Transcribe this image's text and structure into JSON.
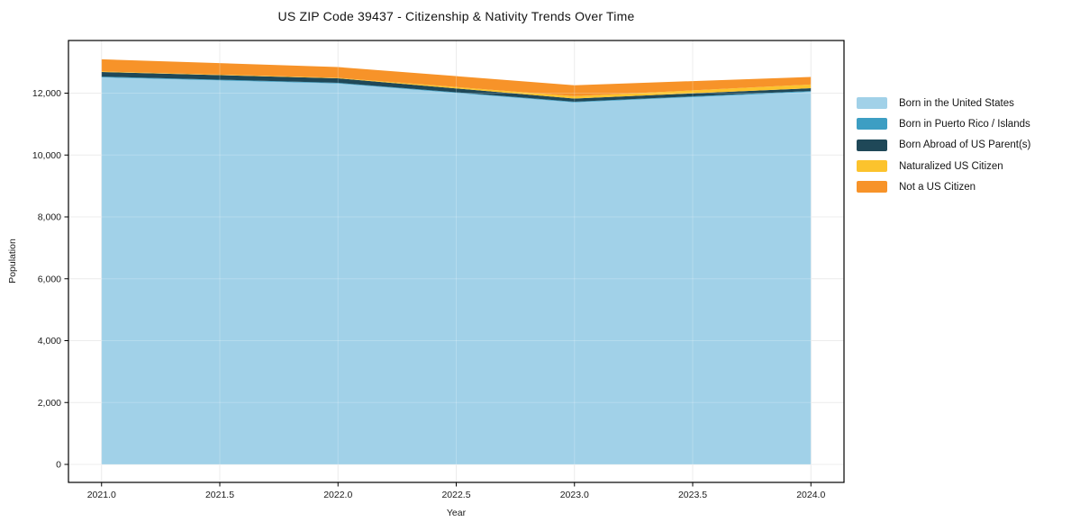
{
  "title": "US ZIP Code 39437 - Citizenship & Nativity Trends Over Time",
  "chart_data": {
    "type": "area",
    "stacked": true,
    "title": "US ZIP Code 39437 - Citizenship & Nativity Trends Over Time",
    "xlabel": "Year",
    "ylabel": "Population",
    "x": [
      2021,
      2022,
      2023,
      2024
    ],
    "series": [
      {
        "name": "Born in the United States",
        "color": "#a1d1e8",
        "values": [
          12510,
          12310,
          11700,
          12045
        ]
      },
      {
        "name": "Born in Puerto Rico / Islands",
        "color": "#3d9ec3",
        "values": [
          25,
          25,
          25,
          25
        ]
      },
      {
        "name": "Born Abroad of US Parent(s)",
        "color": "#1f4858",
        "values": [
          150,
          145,
          100,
          90
        ]
      },
      {
        "name": "Naturalized US Citizen",
        "color": "#fcc32d",
        "values": [
          20,
          15,
          75,
          120
        ]
      },
      {
        "name": "Not a US Citizen",
        "color": "#f79329",
        "values": [
          390,
          350,
          355,
          245
        ]
      }
    ],
    "x_ticks": [
      2021.0,
      2021.5,
      2022.0,
      2022.5,
      2023.0,
      2023.5,
      2024.0
    ],
    "x_tick_labels": [
      "2021.0",
      "2021.5",
      "2022.0",
      "2022.5",
      "2023.0",
      "2023.5",
      "2024.0"
    ],
    "y_ticks": [
      0,
      2000,
      4000,
      6000,
      8000,
      10000,
      12000
    ],
    "y_tick_labels": [
      "0",
      "2,000",
      "4,000",
      "6,000",
      "8,000",
      "10,000",
      "12,000"
    ],
    "xlim": [
      2020.86,
      2024.14
    ],
    "ylim": [
      -582,
      13702
    ],
    "grid": true,
    "legend_position": "right",
    "grid_color": "#e7e7e7",
    "frame_color": "#000000"
  }
}
